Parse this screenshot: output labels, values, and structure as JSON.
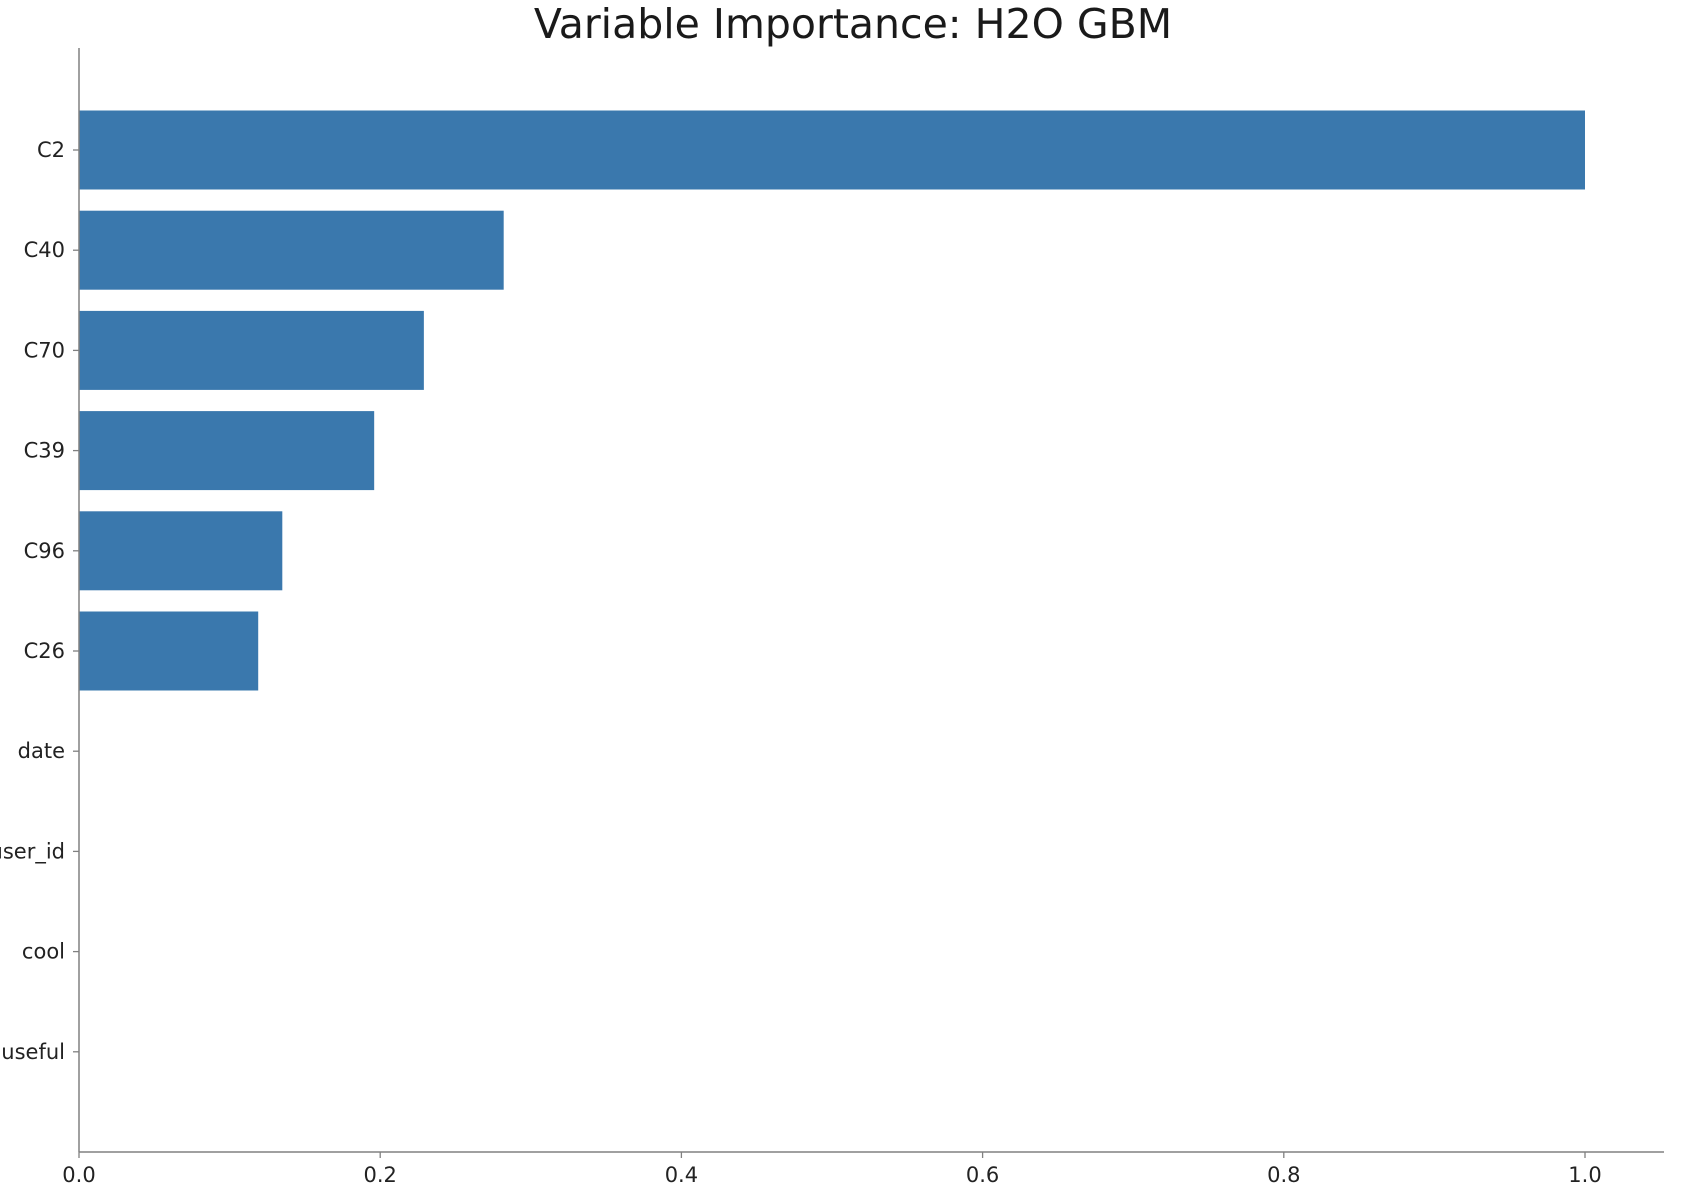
{
  "chart_data": {
    "type": "bar",
    "orientation": "horizontal",
    "title": "Variable Importance: H2O GBM",
    "xlabel": "",
    "ylabel": "",
    "categories": [
      "C2",
      "C40",
      "C70",
      "C39",
      "C96",
      "C26",
      "date",
      "user_id",
      "cool",
      "useful"
    ],
    "values": [
      1.0,
      0.282,
      0.229,
      0.196,
      0.135,
      0.119,
      0.0,
      0.0,
      0.0,
      0.0
    ],
    "xlim": [
      0.0,
      1.05
    ],
    "xticks": [
      "0.0",
      "0.2",
      "0.4",
      "0.6",
      "0.8",
      "1.0"
    ],
    "grid": false,
    "bar_color": "#3a78ad",
    "axis_color": "#808080",
    "spines": [
      "left",
      "bottom"
    ]
  }
}
